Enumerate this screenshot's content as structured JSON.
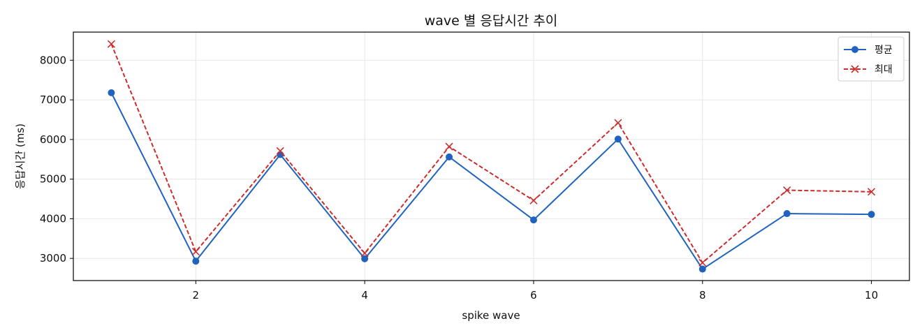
{
  "chart_data": {
    "type": "line",
    "title": "wave 별 응답시간 추이",
    "xlabel": "spike wave",
    "ylabel": "응답시간 (ms)",
    "x": [
      1,
      2,
      3,
      4,
      5,
      6,
      7,
      8,
      9,
      10
    ],
    "xlim": [
      0.55,
      10.45
    ],
    "ylim": [
      2440,
      8710
    ],
    "xticks": [
      2,
      4,
      6,
      8,
      10
    ],
    "yticks": [
      3000,
      4000,
      5000,
      6000,
      7000,
      8000
    ],
    "grid": true,
    "legend_position": "top-right",
    "series": [
      {
        "name": "평균",
        "color": "#1f63bf",
        "line_style": "solid",
        "marker": "circle",
        "values": [
          7180,
          2930,
          5620,
          2990,
          5560,
          3970,
          6010,
          2730,
          4130,
          4110
        ]
      },
      {
        "name": "최대",
        "color": "#cd2c2c",
        "line_style": "dashed",
        "marker": "x",
        "values": [
          8410,
          3170,
          5710,
          3130,
          5820,
          4460,
          6420,
          2890,
          4720,
          4680
        ]
      }
    ]
  }
}
